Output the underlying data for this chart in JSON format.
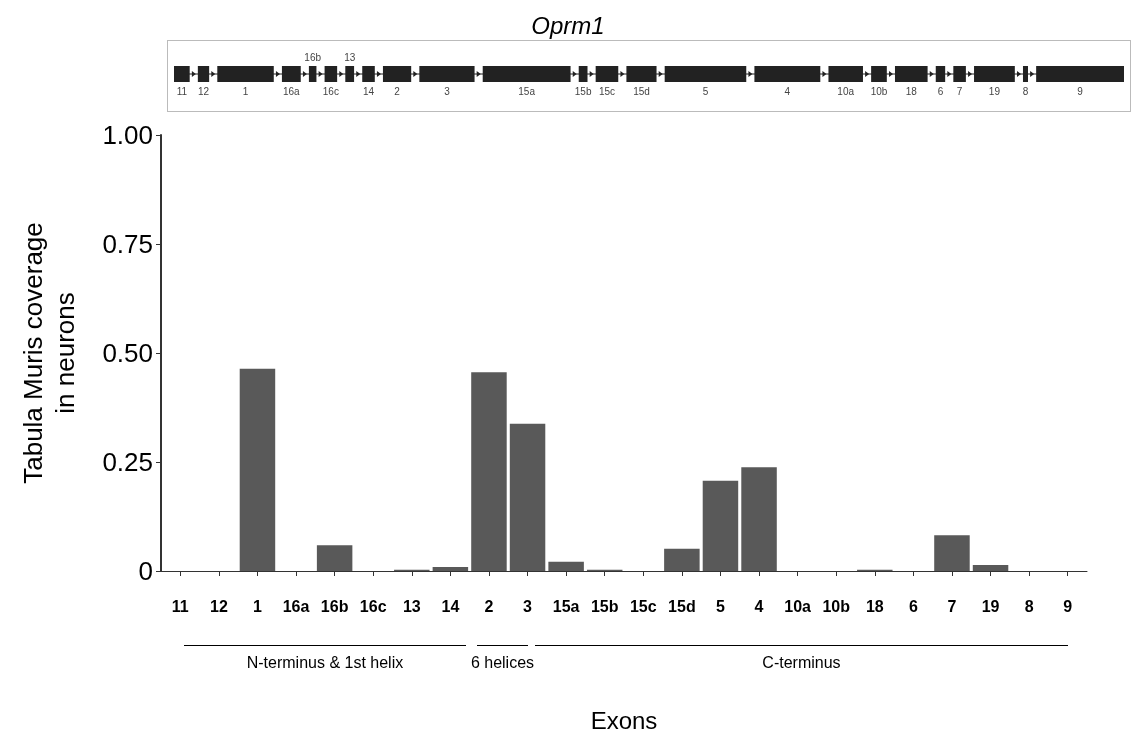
{
  "chart_data": {
    "type": "bar",
    "title": "Oprm1",
    "xlabel": "Exons",
    "ylabel": "Tabula Muris coverage\nin neurons",
    "categories": [
      "11",
      "12",
      "1",
      "16a",
      "16b",
      "16c",
      "13",
      "14",
      "2",
      "3",
      "15a",
      "15b",
      "15c",
      "15d",
      "5",
      "4",
      "10a",
      "10b",
      "18",
      "6",
      "7",
      "19",
      "8",
      "9"
    ],
    "values": [
      0,
      0,
      0.464,
      0,
      0.059,
      0,
      0.003,
      0.009,
      0.456,
      0.338,
      0.021,
      0.003,
      0,
      0.051,
      0.207,
      0.238,
      0,
      0,
      0.003,
      0,
      0.082,
      0.014,
      0,
      0
    ],
    "color": "#595959",
    "ylim": [
      0,
      1
    ],
    "yticks": [
      0,
      0.25,
      {
        "value": 0.5,
        "label": "0.50"
      },
      0.75,
      {
        "value": 1,
        "label": "1.00"
      }
    ],
    "grid": false,
    "annotations": [
      "N-terminus & 1st helix",
      "6 helices",
      "C-terminus"
    ]
  }
}
